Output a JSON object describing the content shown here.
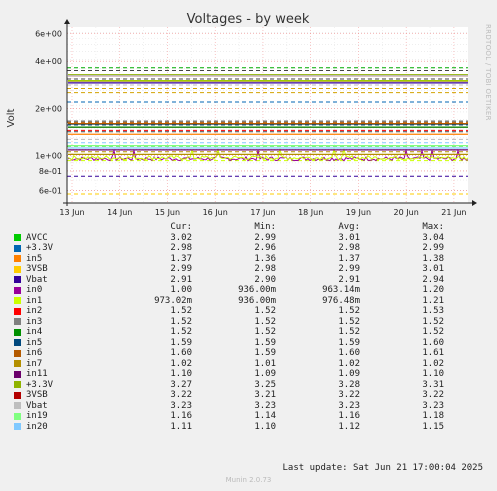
{
  "chart_data": {
    "type": "line",
    "title": "Voltages - by week",
    "ylabel": "Volt",
    "yscale": "log",
    "ylim": [
      0.5,
      6.6
    ],
    "y_ticks": [
      {
        "value": 0.6,
        "label": "6e-01"
      },
      {
        "value": 0.8,
        "label": "8e-01"
      },
      {
        "value": 1.0,
        "label": "1e+00"
      },
      {
        "value": 2.0,
        "label": "2e+00"
      },
      {
        "value": 4.0,
        "label": "4e+00"
      },
      {
        "value": 6.0,
        "label": "6e+00"
      }
    ],
    "x_ticks": [
      "13 Jun",
      "14 Jun",
      "15 Jun",
      "16 Jun",
      "17 Jun",
      "18 Jun",
      "19 Jun",
      "20 Jun",
      "21 Jun"
    ],
    "grid": true,
    "side_label": "RRDTOOL / TOBI OETIKER",
    "legend_headers": {
      "cur": "Cur:",
      "min": "Min:",
      "avg": "Avg:",
      "max": "Max:"
    },
    "series": [
      {
        "name": "AVCC",
        "color": "#00cc00",
        "style": "solid",
        "cur": "3.02",
        "min": "2.99",
        "avg": "3.01",
        "max": "3.04",
        "value": 3.01
      },
      {
        "name": "+3.3V",
        "color": "#0066b3",
        "style": "solid",
        "cur": "2.98",
        "min": "2.96",
        "avg": "2.98",
        "max": "2.99",
        "value": 2.98
      },
      {
        "name": "in5",
        "color": "#ff8000",
        "style": "solid",
        "cur": "1.37",
        "min": "1.36",
        "avg": "1.37",
        "max": "1.38",
        "value": 1.37
      },
      {
        "name": "3VSB",
        "color": "#ffcc00",
        "style": "solid",
        "cur": "2.99",
        "min": "2.98",
        "avg": "2.99",
        "max": "3.01",
        "value": 2.99
      },
      {
        "name": "Vbat",
        "color": "#330099",
        "style": "solid",
        "cur": "2.91",
        "min": "2.90",
        "avg": "2.91",
        "max": "2.94",
        "value": 2.91
      },
      {
        "name": "in0",
        "color": "#990099",
        "style": "noisy",
        "cur": "1.00",
        "min": "936.00m",
        "avg": "963.14m",
        "max": "1.20",
        "value": 0.963
      },
      {
        "name": "in1",
        "color": "#ccff00",
        "style": "noisy",
        "cur": "973.02m",
        "min": "936.00m",
        "avg": "976.48m",
        "max": "1.21",
        "value": 0.976
      },
      {
        "name": "in2",
        "color": "#ff0000",
        "style": "solid",
        "cur": "1.52",
        "min": "1.52",
        "avg": "1.52",
        "max": "1.53",
        "value": 1.52
      },
      {
        "name": "in3",
        "color": "#808080",
        "style": "solid",
        "cur": "1.52",
        "min": "1.52",
        "avg": "1.52",
        "max": "1.52",
        "value": 1.52
      },
      {
        "name": "in4",
        "color": "#008f00",
        "style": "solid",
        "cur": "1.52",
        "min": "1.52",
        "avg": "1.52",
        "max": "1.52",
        "value": 1.52
      },
      {
        "name": "in5",
        "color": "#00487d",
        "style": "solid",
        "cur": "1.59",
        "min": "1.59",
        "avg": "1.59",
        "max": "1.60",
        "value": 1.59
      },
      {
        "name": "in6",
        "color": "#b35a00",
        "style": "solid",
        "cur": "1.60",
        "min": "1.59",
        "avg": "1.60",
        "max": "1.61",
        "value": 1.6
      },
      {
        "name": "in7",
        "color": "#b38f00",
        "style": "solid",
        "cur": "1.02",
        "min": "1.01",
        "avg": "1.02",
        "max": "1.02",
        "value": 1.02
      },
      {
        "name": "in11",
        "color": "#6b006b",
        "style": "solid",
        "cur": "1.10",
        "min": "1.09",
        "avg": "1.09",
        "max": "1.10",
        "value": 1.09
      },
      {
        "name": "+3.3V",
        "color": "#8fb300",
        "style": "solid",
        "cur": "3.27",
        "min": "3.25",
        "avg": "3.28",
        "max": "3.31",
        "value": 3.28
      },
      {
        "name": "3VSB",
        "color": "#b30000",
        "style": "solid",
        "cur": "3.22",
        "min": "3.21",
        "avg": "3.22",
        "max": "3.22",
        "value": 3.22
      },
      {
        "name": "Vbat",
        "color": "#bebebe",
        "style": "solid",
        "cur": "3.23",
        "min": "3.23",
        "avg": "3.23",
        "max": "3.23",
        "value": 3.23
      },
      {
        "name": "in19",
        "color": "#80ff80",
        "style": "solid",
        "cur": "1.16",
        "min": "1.14",
        "avg": "1.16",
        "max": "1.18",
        "value": 1.16
      },
      {
        "name": "in20",
        "color": "#80c9ff",
        "style": "solid",
        "cur": "1.11",
        "min": "1.10",
        "avg": "1.12",
        "max": "1.15",
        "value": 1.12
      }
    ],
    "warning_lines": [
      {
        "value": 3.63,
        "color": "#00aa00"
      },
      {
        "value": 3.49,
        "color": "#444444"
      },
      {
        "value": 3.08,
        "color": "#444444"
      },
      {
        "value": 2.82,
        "color": "#bbbbbb"
      },
      {
        "value": 2.68,
        "color": "#d4a300"
      },
      {
        "value": 2.52,
        "color": "#d4a300"
      },
      {
        "value": 2.2,
        "color": "#0066b3"
      },
      {
        "value": 1.66,
        "color": "#444444"
      },
      {
        "value": 1.63,
        "color": "#b35a00"
      },
      {
        "value": 1.57,
        "color": "#00487d"
      },
      {
        "value": 1.45,
        "color": "#ff0000"
      },
      {
        "value": 1.42,
        "color": "#444444"
      },
      {
        "value": 1.27,
        "color": "#bbbbbb"
      },
      {
        "value": 1.21,
        "color": "#80c9ff"
      },
      {
        "value": 1.15,
        "color": "#00cc00"
      },
      {
        "value": 1.06,
        "color": "#b38f00"
      },
      {
        "value": 0.93,
        "color": "#ccff00"
      },
      {
        "value": 0.74,
        "color": "#330099"
      },
      {
        "value": 0.57,
        "color": "#ffcc00"
      }
    ]
  },
  "footer": {
    "last_update": "Last update: Sat Jun 21 17:00:04 2025",
    "munin": "Munin 2.0.73"
  }
}
